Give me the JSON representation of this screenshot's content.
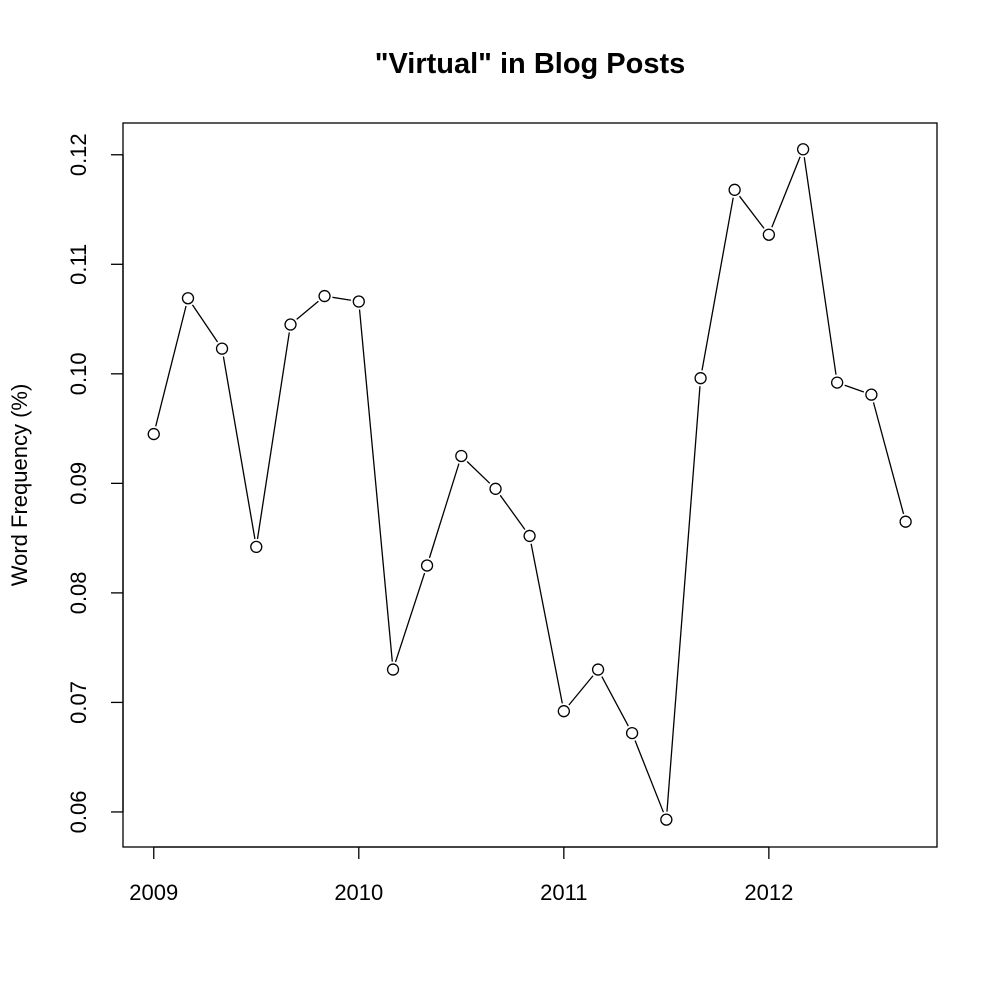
{
  "chart_data": {
    "type": "line",
    "title": "\"Virtual\" in Blog Posts",
    "xlabel": "",
    "ylabel": "Word Frequency (%)",
    "markers": "open-circle",
    "line_color": "#000000",
    "grid": false,
    "xlim": [
      2008.85,
      2012.82
    ],
    "ylim": [
      0.0568,
      0.1229
    ],
    "x_ticks": [
      2009,
      2010,
      2011,
      2012
    ],
    "x_tick_labels": [
      "2009",
      "2010",
      "2011",
      "2012"
    ],
    "y_ticks": [
      0.06,
      0.07,
      0.08,
      0.09,
      0.1,
      0.11,
      0.12
    ],
    "y_tick_labels": [
      "0.06",
      "0.07",
      "0.08",
      "0.09",
      "0.10",
      "0.11",
      "0.12"
    ],
    "x": [
      2009.0,
      2009.167,
      2009.333,
      2009.5,
      2009.667,
      2009.833,
      2010.0,
      2010.167,
      2010.333,
      2010.5,
      2010.667,
      2010.833,
      2011.0,
      2011.167,
      2011.333,
      2011.5,
      2011.667,
      2011.833,
      2012.0,
      2012.167,
      2012.333,
      2012.5,
      2012.667
    ],
    "y": [
      0.0945,
      0.1069,
      0.1023,
      0.0842,
      0.1045,
      0.1071,
      0.1066,
      0.073,
      0.0825,
      0.0925,
      0.0895,
      0.0852,
      0.0692,
      0.073,
      0.0672,
      0.0593,
      0.0996,
      0.1168,
      0.1127,
      0.1205,
      0.0992,
      0.0981,
      0.0865
    ]
  }
}
